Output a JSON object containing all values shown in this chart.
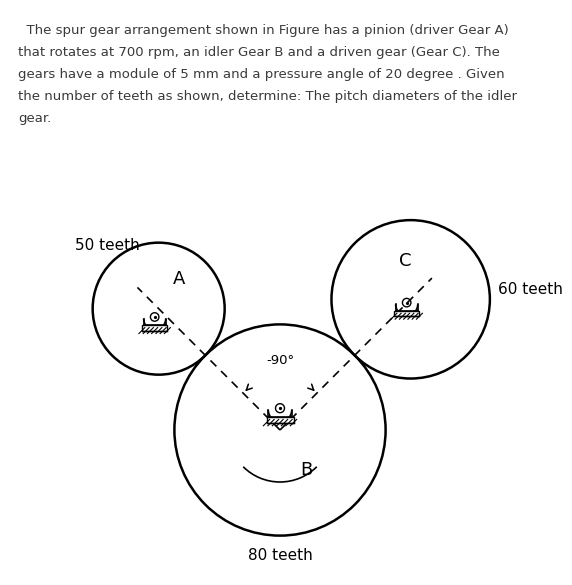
{
  "text_line1": "  The spur gear arrangement shown in Figure has a pinion (driver Gear A)",
  "text_line2": "that rotates at 700 rpm, an idler Gear B and a driven gear (Gear C). The",
  "text_line3": "gears have a module of 5 mm and a pressure angle of 20 degree . Given",
  "text_line4": "the number of teeth as shown, determine: The pitch diameters of the idler",
  "text_line5": "gear.",
  "gear_A_label": "A",
  "gear_A_teeth": "50 teeth",
  "gear_B_label": "B",
  "gear_B_teeth": "80 teeth",
  "gear_C_label": "C",
  "gear_C_teeth": "60 teeth",
  "angle_label": "-90°",
  "background_color": "#ffffff",
  "text_color": "#3a3a3a",
  "line_color": "#000000"
}
